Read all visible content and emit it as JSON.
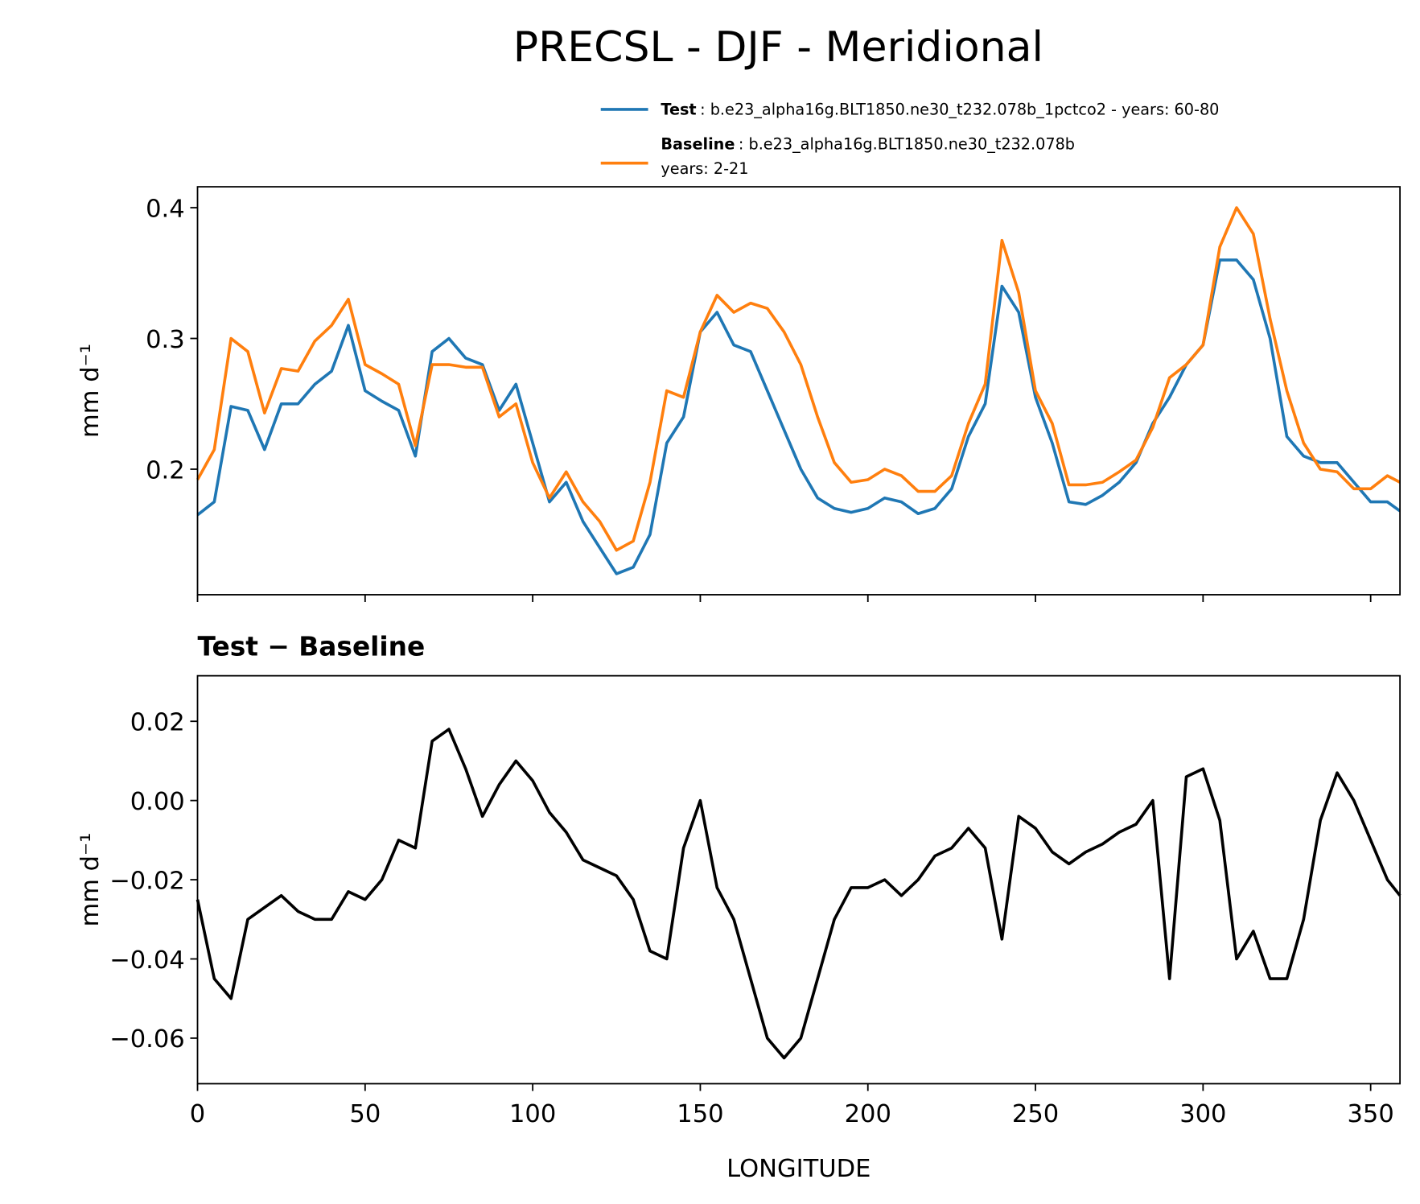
{
  "chart_data": [
    {
      "type": "line",
      "title": "PRECSL - DJF - Meridional",
      "ylabel": "mm d⁻¹",
      "x": [
        0,
        5,
        10,
        15,
        20,
        25,
        30,
        35,
        40,
        45,
        50,
        55,
        60,
        65,
        70,
        75,
        80,
        85,
        90,
        95,
        100,
        105,
        110,
        115,
        120,
        125,
        130,
        135,
        140,
        145,
        150,
        155,
        160,
        165,
        170,
        175,
        180,
        185,
        190,
        195,
        200,
        205,
        210,
        215,
        220,
        225,
        230,
        235,
        240,
        245,
        250,
        255,
        260,
        265,
        270,
        275,
        280,
        285,
        290,
        295,
        300,
        305,
        310,
        315,
        320,
        325,
        330,
        335,
        340,
        345,
        350,
        355,
        358.75
      ],
      "series": [
        {
          "name": "Test",
          "legend_text": [
            ": b.e23_alpha16g.BLT1850.ne30_t232.078b_1pctco2 - years: 60-80"
          ],
          "color": "#1f77b4",
          "values": [
            0.165,
            0.175,
            0.248,
            0.245,
            0.215,
            0.25,
            0.25,
            0.265,
            0.275,
            0.31,
            0.26,
            0.252,
            0.245,
            0.21,
            0.29,
            0.3,
            0.285,
            0.28,
            0.245,
            0.265,
            0.22,
            0.175,
            0.19,
            0.16,
            0.14,
            0.12,
            0.125,
            0.15,
            0.22,
            0.24,
            0.305,
            0.32,
            0.295,
            0.29,
            0.26,
            0.23,
            0.2,
            0.178,
            0.17,
            0.167,
            0.17,
            0.178,
            0.175,
            0.166,
            0.17,
            0.185,
            0.225,
            0.25,
            0.34,
            0.32,
            0.255,
            0.22,
            0.175,
            0.173,
            0.18,
            0.19,
            0.205,
            0.235,
            0.255,
            0.28,
            0.295,
            0.36,
            0.36,
            0.345,
            0.3,
            0.225,
            0.21,
            0.205,
            0.205,
            0.19,
            0.175,
            0.175,
            0.168
          ]
        },
        {
          "name": "Baseline",
          "legend_text": [
            ": b.e23_alpha16g.BLT1850.ne30_t232.078b",
            "years: 2-21"
          ],
          "color": "#ff7f0e",
          "values": [
            0.192,
            0.215,
            0.3,
            0.29,
            0.243,
            0.277,
            0.275,
            0.298,
            0.31,
            0.33,
            0.28,
            0.273,
            0.265,
            0.218,
            0.28,
            0.28,
            0.278,
            0.278,
            0.24,
            0.25,
            0.205,
            0.178,
            0.198,
            0.175,
            0.16,
            0.138,
            0.145,
            0.19,
            0.26,
            0.255,
            0.305,
            0.333,
            0.32,
            0.327,
            0.323,
            0.305,
            0.28,
            0.24,
            0.205,
            0.19,
            0.192,
            0.2,
            0.195,
            0.183,
            0.183,
            0.195,
            0.235,
            0.265,
            0.375,
            0.335,
            0.26,
            0.235,
            0.188,
            0.188,
            0.19,
            0.198,
            0.207,
            0.232,
            0.27,
            0.28,
            0.295,
            0.37,
            0.4,
            0.38,
            0.315,
            0.26,
            0.22,
            0.2,
            0.198,
            0.185,
            0.185,
            0.195,
            0.19
          ]
        }
      ],
      "xlim": [
        0,
        358.75
      ],
      "xticks": [
        0,
        50,
        100,
        150,
        200,
        250,
        300,
        350
      ],
      "xtick_labels": false,
      "ylim": [
        0.104,
        0.416
      ],
      "yticks": [
        0.2,
        0.3,
        0.4
      ]
    },
    {
      "type": "line",
      "title": "Test − Baseline",
      "xlabel": "LONGITUDE",
      "ylabel": "mm d⁻¹",
      "x": [
        0,
        5,
        10,
        15,
        20,
        25,
        30,
        35,
        40,
        45,
        50,
        55,
        60,
        65,
        70,
        75,
        80,
        85,
        90,
        95,
        100,
        105,
        110,
        115,
        120,
        125,
        130,
        135,
        140,
        145,
        150,
        155,
        160,
        165,
        170,
        175,
        180,
        185,
        190,
        195,
        200,
        205,
        210,
        215,
        220,
        225,
        230,
        235,
        240,
        245,
        250,
        255,
        260,
        265,
        270,
        275,
        280,
        285,
        290,
        295,
        300,
        305,
        310,
        315,
        320,
        325,
        330,
        335,
        340,
        345,
        350,
        355,
        358.75
      ],
      "series": [
        {
          "color": "#000000",
          "values": [
            -0.025,
            -0.045,
            -0.05,
            -0.03,
            -0.027,
            -0.024,
            -0.028,
            -0.03,
            -0.03,
            -0.023,
            -0.025,
            -0.02,
            -0.01,
            -0.012,
            0.015,
            0.018,
            0.008,
            -0.004,
            0.004,
            0.01,
            0.005,
            -0.003,
            -0.008,
            -0.015,
            -0.017,
            -0.019,
            -0.025,
            -0.038,
            -0.04,
            -0.012,
            0.0,
            -0.022,
            -0.03,
            -0.045,
            -0.06,
            -0.065,
            -0.06,
            -0.045,
            -0.03,
            -0.022,
            -0.022,
            -0.02,
            -0.024,
            -0.02,
            -0.014,
            -0.012,
            -0.007,
            -0.012,
            -0.035,
            -0.004,
            -0.007,
            -0.013,
            -0.016,
            -0.013,
            -0.011,
            -0.008,
            -0.006,
            0.0,
            -0.045,
            0.006,
            0.008,
            -0.005,
            -0.04,
            -0.033,
            -0.045,
            -0.045,
            -0.03,
            -0.005,
            0.007,
            0.0,
            -0.01,
            -0.02,
            -0.024
          ]
        }
      ],
      "xlim": [
        0,
        358.75
      ],
      "xticks": [
        0,
        50,
        100,
        150,
        200,
        250,
        300,
        350
      ],
      "xtick_labels": true,
      "ylim": [
        -0.0715,
        0.0315
      ],
      "yticks": [
        {
          "value": -0.06,
          "label": "−0.06"
        },
        {
          "value": -0.04,
          "label": "−0.04"
        },
        {
          "value": -0.02,
          "label": "−0.02"
        },
        {
          "value": 0,
          "label": "0.00"
        },
        0.02
      ]
    }
  ]
}
